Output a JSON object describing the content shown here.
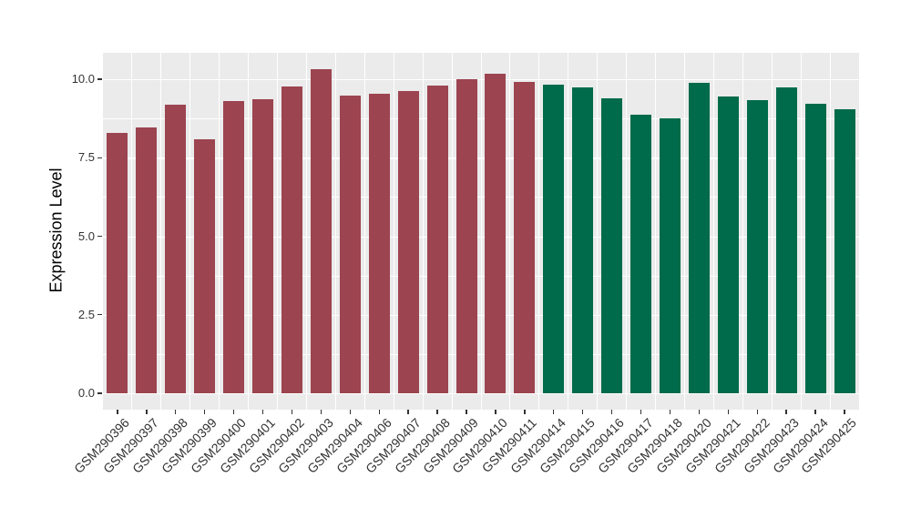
{
  "chart_data": {
    "type": "bar",
    "title": "",
    "xlabel": "",
    "ylabel": "Expression Level",
    "categories": [
      "GSM290396",
      "GSM290397",
      "GSM290398",
      "GSM290399",
      "GSM290400",
      "GSM290401",
      "GSM290402",
      "GSM290403",
      "GSM290404",
      "GSM290406",
      "GSM290407",
      "GSM290408",
      "GSM290409",
      "GSM290410",
      "GSM290411",
      "GSM290414",
      "GSM290415",
      "GSM290416",
      "GSM290417",
      "GSM290418",
      "GSM290420",
      "GSM290421",
      "GSM290422",
      "GSM290423",
      "GSM290424",
      "GSM290425"
    ],
    "values": [
      8.29,
      8.46,
      9.2,
      8.09,
      9.31,
      9.35,
      9.78,
      10.32,
      9.47,
      9.55,
      9.61,
      9.79,
      9.99,
      10.16,
      9.92,
      9.82,
      9.73,
      9.39,
      8.86,
      8.74,
      9.87,
      9.46,
      9.34,
      9.75,
      9.21,
      9.05
    ],
    "groups": [
      "red",
      "red",
      "red",
      "red",
      "red",
      "red",
      "red",
      "red",
      "red",
      "red",
      "red",
      "red",
      "red",
      "red",
      "red",
      "green",
      "green",
      "green",
      "green",
      "green",
      "green",
      "green",
      "green",
      "green",
      "green",
      "green"
    ],
    "group_colors": {
      "red": "#9C4450",
      "green": "#006B4A"
    },
    "yticks": [
      0,
      2.5,
      5,
      7.5,
      10
    ],
    "ytick_labels": [
      "0.0",
      "2.5",
      "5.0",
      "7.5",
      "10.0"
    ],
    "yticks_minor": [
      1.25,
      3.75,
      6.25,
      8.75
    ],
    "ylim": [
      -0.52,
      10.84
    ],
    "grid": true,
    "legend": false,
    "panel_bg": "#EBEBEB",
    "grid_color": "#FFFFFF",
    "axis_text_color": "#333333",
    "bar_width_ratio": 0.72
  }
}
